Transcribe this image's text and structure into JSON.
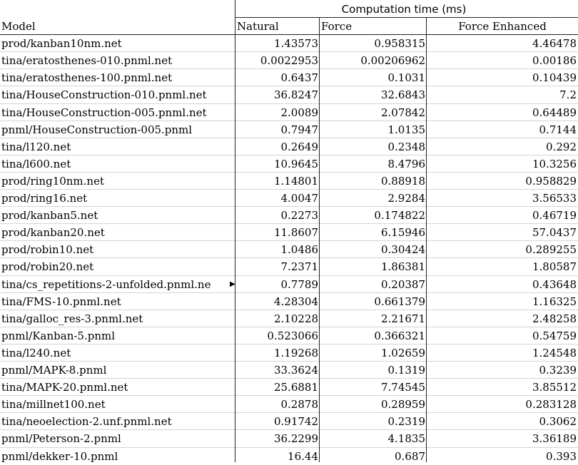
{
  "table": {
    "group_header": "Computation time (ms)",
    "columns": [
      "Model",
      "Natural",
      "Force",
      "Force  Enhanced"
    ],
    "rows": [
      [
        "prod/kanban10nm.net",
        "1.43573",
        "0.958315",
        "4.46478"
      ],
      [
        "tina/eratosthenes-010.pnml.net",
        "0.0022953",
        "0.00206962",
        "0.00186"
      ],
      [
        "tina/eratosthenes-100.pnml.net",
        "0.6437",
        "0.1031",
        "0.10439"
      ],
      [
        "tina/HouseConstruction-010.pnml.net",
        "36.8247",
        "32.6843",
        "7.2"
      ],
      [
        "tina/HouseConstruction-005.pnml.net",
        "2.0089",
        "2.07842",
        "0.64489"
      ],
      [
        "pnml/HouseConstruction-005.pnml",
        "0.7947",
        "1.0135",
        "0.7144"
      ],
      [
        "tina/l120.net",
        "0.2649",
        "0.2348",
        "0.292"
      ],
      [
        "tina/l600.net",
        "10.9645",
        "8.4796",
        "10.3256"
      ],
      [
        "prod/ring10nm.net",
        "1.14801",
        "0.88918",
        "0.958829"
      ],
      [
        "prod/ring16.net",
        "4.0047",
        "2.9284",
        "3.56533"
      ],
      [
        "prod/kanban5.net",
        "0.2273",
        "0.174822",
        "0.46719"
      ],
      [
        "prod/kanban20.net",
        "11.8607",
        "6.15946",
        "57.0437"
      ],
      [
        "prod/robin10.net",
        "1.0486",
        "0.30424",
        "0.289255"
      ],
      [
        "prod/robin20.net",
        "7.2371",
        "1.86381",
        "1.80587"
      ],
      [
        "tina/cs_repetitions-2-unfolded.pnml.ne",
        "0.7789",
        "0.20387",
        "0.43648"
      ],
      [
        "tina/FMS-10.pnml.net",
        "4.28304",
        "0.661379",
        "1.16325"
      ],
      [
        "tina/galloc_res-3.pnml.net",
        "2.10228",
        "2.21671",
        "2.48258"
      ],
      [
        "pnml/Kanban-5.pnml",
        "0.523066",
        "0.366321",
        "0.54759"
      ],
      [
        "tina/l240.net",
        "1.19268",
        "1.02659",
        "1.24548"
      ],
      [
        "pnml/MAPK-8.pnml",
        "33.3624",
        "0.1319",
        "0.3239"
      ],
      [
        "tina/MAPK-20.pnml.net",
        "25.6881",
        "7.74545",
        "3.85512"
      ],
      [
        "tina/millnet100.net",
        "0.2878",
        "0.28959",
        "0.283128"
      ],
      [
        "tina/neoelection-2.unf.pnml.net",
        "0.91742",
        "0.2319",
        "0.3062"
      ],
      [
        "pnml/Peterson-2.pnml",
        "36.2299",
        "4.1835",
        "3.36189"
      ],
      [
        "pnml/dekker-10.pnml",
        "16.44",
        "0.687",
        "0.393"
      ]
    ]
  }
}
